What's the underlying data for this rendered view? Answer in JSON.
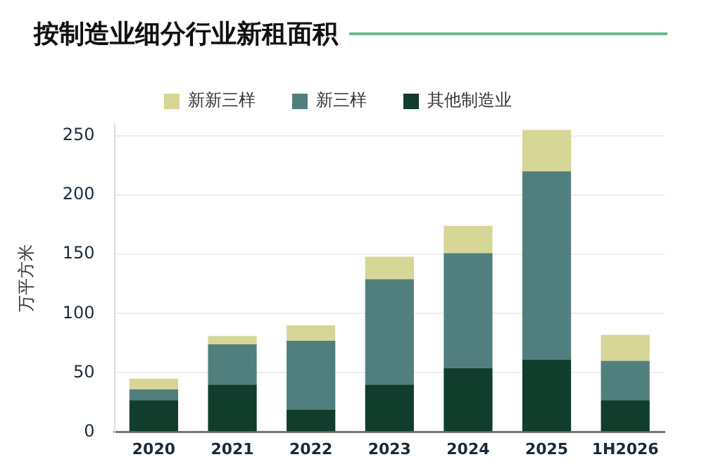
{
  "chart_data": {
    "type": "bar",
    "title": "按制造业细分行业新租面积",
    "ylabel": "万平方米",
    "categories": [
      "2020",
      "2021",
      "2022",
      "2023",
      "2024",
      "2025",
      "1H2026"
    ],
    "stacked": true,
    "series": [
      {
        "name": "其他制造业",
        "color": "#103d2c",
        "values": [
          27,
          40,
          19,
          40,
          54,
          61,
          27
        ]
      },
      {
        "name": "新三样",
        "color": "#517f7e",
        "values": [
          9,
          34,
          58,
          89,
          97,
          159,
          33
        ]
      },
      {
        "name": "新新三样",
        "color": "#d6d697",
        "values": [
          9,
          7,
          13,
          19,
          23,
          35,
          22
        ]
      }
    ],
    "ylim": [
      0,
      260
    ],
    "yticks": [
      0,
      50,
      100,
      150,
      200,
      250
    ],
    "grid": "y",
    "legend": "top"
  }
}
